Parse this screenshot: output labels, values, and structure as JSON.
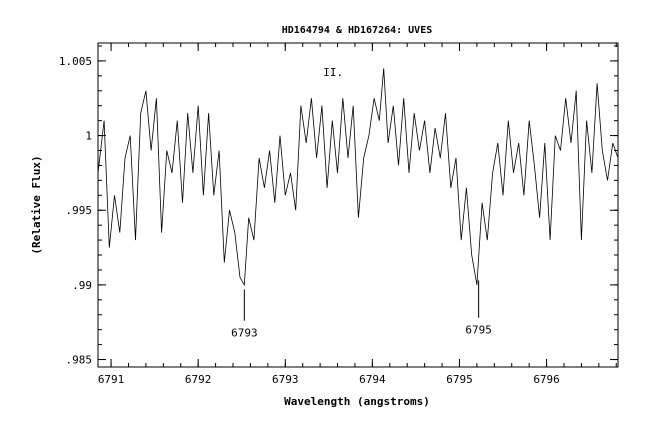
{
  "chart_data": {
    "type": "line",
    "title": "HD164794 & HD167264: UVES",
    "xlabel": "Wavelength (angstroms)",
    "ylabel": "(Relative Flux)",
    "xlim": [
      6790.85,
      6796.82
    ],
    "ylim": [
      0.9845,
      1.0062
    ],
    "x_ticks": [
      6791,
      6792,
      6793,
      6794,
      6795,
      6796
    ],
    "x_tick_labels": [
      "6791",
      "6792",
      "6793",
      "6794",
      "6795",
      "6796"
    ],
    "y_ticks": [
      0.985,
      0.99,
      0.995,
      1.0,
      1.005
    ],
    "y_tick_labels": [
      ".985",
      ".99",
      ".995",
      "1",
      "1.005"
    ],
    "grid": false,
    "annotations": [
      {
        "text": "II.",
        "x": 6793.55,
        "y": 1.004
      },
      {
        "text": "6793",
        "x": 6792.53,
        "y": 0.9897
      },
      {
        "text": "6795",
        "x": 6795.22,
        "y": 0.9897
      }
    ],
    "line_markers": [
      {
        "label": "6793",
        "x": 6792.53,
        "y_top": 0.9897,
        "y_bottom": 0.9876
      },
      {
        "label": "6795",
        "x": 6795.22,
        "y_top": 0.9903,
        "y_bottom": 0.9878
      }
    ],
    "series": [
      {
        "x": [
          6790.85,
          6790.92,
          6790.98,
          6791.04,
          6791.1,
          6791.16,
          6791.22,
          6791.28,
          6791.34,
          6791.4,
          6791.46,
          6791.52,
          6791.58,
          6791.64,
          6791.7,
          6791.76,
          6791.82,
          6791.88,
          6791.94,
          6792.0,
          6792.06,
          6792.12,
          6792.18,
          6792.24,
          6792.3,
          6792.36,
          6792.42,
          6792.48,
          6792.53,
          6792.58,
          6792.64,
          6792.7,
          6792.76,
          6792.82,
          6792.88,
          6792.94,
          6793.0,
          6793.06,
          6793.12,
          6793.18,
          6793.24,
          6793.3,
          6793.36,
          6793.42,
          6793.48,
          6793.54,
          6793.6,
          6793.66,
          6793.72,
          6793.78,
          6793.84,
          6793.9,
          6793.96,
          6794.02,
          6794.08,
          6794.13,
          6794.18,
          6794.24,
          6794.3,
          6794.36,
          6794.42,
          6794.48,
          6794.54,
          6794.6,
          6794.66,
          6794.72,
          6794.78,
          6794.84,
          6794.9,
          6794.96,
          6795.02,
          6795.08,
          6795.14,
          6795.2,
          6795.26,
          6795.32,
          6795.38,
          6795.44,
          6795.5,
          6795.56,
          6795.62,
          6795.68,
          6795.74,
          6795.8,
          6795.86,
          6795.92,
          6795.98,
          6796.04,
          6796.1,
          6796.16,
          6796.22,
          6796.28,
          6796.34,
          6796.4,
          6796.46,
          6796.52,
          6796.58,
          6796.64,
          6796.7,
          6796.76,
          6796.82
        ],
        "values": [
          0.9975,
          1.001,
          0.9925,
          0.996,
          0.9935,
          0.9985,
          1.0,
          0.993,
          1.0015,
          1.003,
          0.999,
          1.0025,
          0.9935,
          0.999,
          0.9975,
          1.001,
          0.9955,
          1.0015,
          0.9975,
          1.002,
          0.996,
          1.0015,
          0.996,
          0.999,
          0.9915,
          0.995,
          0.9935,
          0.9905,
          0.99,
          0.9945,
          0.993,
          0.9985,
          0.9965,
          0.999,
          0.9955,
          1.0,
          0.996,
          0.9975,
          0.995,
          1.002,
          0.9995,
          1.0025,
          0.9985,
          1.002,
          0.9965,
          1.001,
          0.9975,
          1.0025,
          0.9985,
          1.002,
          0.9945,
          0.9985,
          1.0,
          1.0025,
          1.001,
          1.0045,
          0.9995,
          1.002,
          0.998,
          1.0025,
          0.9975,
          1.0015,
          0.999,
          1.001,
          0.9975,
          1.0005,
          0.9985,
          1.0015,
          0.9965,
          0.9985,
          0.993,
          0.9965,
          0.992,
          0.99,
          0.9955,
          0.993,
          0.9975,
          0.9995,
          0.996,
          1.001,
          0.9975,
          0.9995,
          0.996,
          1.001,
          0.998,
          0.9945,
          0.9995,
          0.993,
          1.0,
          0.999,
          1.0025,
          0.9995,
          1.003,
          0.993,
          1.001,
          0.9975,
          1.0035,
          0.999,
          0.997,
          0.9995,
          0.9985
        ]
      }
    ]
  }
}
